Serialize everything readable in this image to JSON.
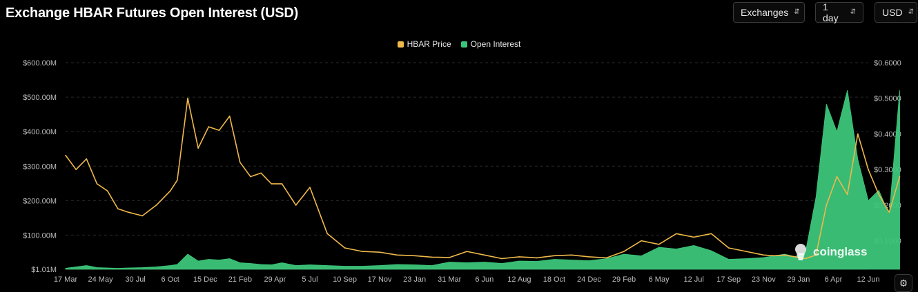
{
  "header": {
    "title": "Exchange HBAR Futures Open Interest (USD)"
  },
  "controls": {
    "exchanges": {
      "label": "Exchanges"
    },
    "interval": {
      "label": "1 day"
    },
    "currency": {
      "label": "USD"
    }
  },
  "icons": {
    "dropdown": "chevron-up-down-icon",
    "watermark": "coinglass-logo",
    "settings": "gear-icon"
  },
  "watermark": {
    "text": "coinglass"
  },
  "colors": {
    "price": "#f0b94a",
    "open_interest": "#3cc57a",
    "background": "#000000",
    "grid": "#2b2b2b",
    "tick_text": "#bdbdbd"
  },
  "chart_data": {
    "type": "area",
    "title": "Exchange HBAR Futures Open Interest (USD)",
    "legend": {
      "position": "top-center",
      "entries": [
        "HBAR Price",
        "Open Interest"
      ]
    },
    "grid": true,
    "x_ticks": [
      "17 Mar",
      "24 May",
      "30 Jul",
      "6 Oct",
      "15 Dec",
      "21 Feb",
      "29 Apr",
      "5 Jul",
      "10 Sep",
      "17 Nov",
      "23 Jan",
      "31 Mar",
      "6 Jun",
      "12 Aug",
      "18 Oct",
      "24 Dec",
      "29 Feb",
      "6 May",
      "12 Jul",
      "17 Sep",
      "23 Nov",
      "29 Jan",
      "6 Apr",
      "12 Jun"
    ],
    "y_left": {
      "label": "Open Interest",
      "ticks": [
        "$1.01M",
        "$100.00M",
        "$200.00M",
        "$300.00M",
        "$400.00M",
        "$500.00M",
        "$600.00M"
      ],
      "tick_values": [
        1.01,
        100,
        200,
        300,
        400,
        500,
        600
      ],
      "ylim": [
        1.01,
        600
      ],
      "unit": "M USD"
    },
    "y_right": {
      "label": "HBAR Price",
      "ticks": [
        "$0.1000",
        "$0.2000",
        "$0.3000",
        "$0.4000",
        "$0.5000",
        "$0.6000"
      ],
      "tick_values": [
        0.1,
        0.2,
        0.3,
        0.4,
        0.5,
        0.6
      ],
      "ylim": [
        0.02,
        0.6
      ]
    },
    "series": [
      {
        "name": "HBAR Price",
        "type": "line",
        "axis": "right",
        "x": [
          0,
          0.3,
          0.6,
          0.9,
          1.2,
          1.5,
          1.8,
          2.2,
          2.6,
          3.0,
          3.2,
          3.5,
          3.8,
          4.1,
          4.4,
          4.7,
          5.0,
          5.3,
          5.6,
          5.9,
          6.2,
          6.6,
          7.0,
          7.5,
          8.0,
          8.5,
          9.0,
          9.5,
          10.0,
          10.5,
          11.0,
          11.5,
          12.0,
          12.5,
          13.0,
          13.5,
          14.0,
          14.5,
          15.0,
          15.5,
          16.0,
          16.5,
          17.0,
          17.5,
          18.0,
          18.5,
          19.0,
          19.5,
          20.0,
          20.3,
          20.6,
          20.9,
          21.2,
          21.5,
          21.8,
          22.1,
          22.4,
          22.7,
          23.0,
          23.3,
          23.6,
          23.9
        ],
        "values": [
          0.34,
          0.3,
          0.33,
          0.26,
          0.24,
          0.19,
          0.18,
          0.17,
          0.2,
          0.24,
          0.27,
          0.5,
          0.36,
          0.42,
          0.41,
          0.45,
          0.32,
          0.28,
          0.29,
          0.26,
          0.26,
          0.2,
          0.25,
          0.12,
          0.08,
          0.07,
          0.068,
          0.06,
          0.058,
          0.054,
          0.053,
          0.07,
          0.06,
          0.05,
          0.055,
          0.052,
          0.058,
          0.06,
          0.055,
          0.052,
          0.07,
          0.1,
          0.09,
          0.12,
          0.11,
          0.12,
          0.08,
          0.07,
          0.06,
          0.058,
          0.06,
          0.055,
          0.05,
          0.06,
          0.2,
          0.28,
          0.23,
          0.4,
          0.3,
          0.23,
          0.18,
          0.28
        ]
      },
      {
        "name": "Open Interest",
        "type": "area",
        "axis": "left",
        "x": [
          0,
          0.3,
          0.6,
          0.9,
          1.2,
          1.5,
          1.8,
          2.2,
          2.6,
          3.0,
          3.2,
          3.5,
          3.8,
          4.1,
          4.4,
          4.7,
          5.0,
          5.3,
          5.6,
          5.9,
          6.2,
          6.6,
          7.0,
          7.5,
          8.0,
          8.5,
          9.0,
          9.5,
          10.0,
          10.5,
          11.0,
          11.5,
          12.0,
          12.5,
          13.0,
          13.5,
          14.0,
          14.5,
          15.0,
          15.5,
          16.0,
          16.5,
          17.0,
          17.5,
          18.0,
          18.5,
          19.0,
          19.5,
          20.0,
          20.3,
          20.6,
          20.9,
          21.2,
          21.5,
          21.8,
          22.1,
          22.4,
          22.7,
          23.0,
          23.3,
          23.6,
          23.9
        ],
        "values": [
          4,
          8,
          12,
          6,
          5,
          4,
          5,
          6,
          8,
          12,
          15,
          45,
          25,
          30,
          28,
          32,
          20,
          18,
          15,
          14,
          20,
          12,
          14,
          12,
          10,
          10,
          12,
          15,
          14,
          12,
          22,
          20,
          22,
          18,
          25,
          24,
          30,
          28,
          26,
          32,
          45,
          40,
          65,
          60,
          70,
          55,
          30,
          32,
          35,
          40,
          45,
          38,
          50,
          210,
          480,
          400,
          520,
          320,
          200,
          230,
          160,
          520
        ]
      }
    ]
  }
}
